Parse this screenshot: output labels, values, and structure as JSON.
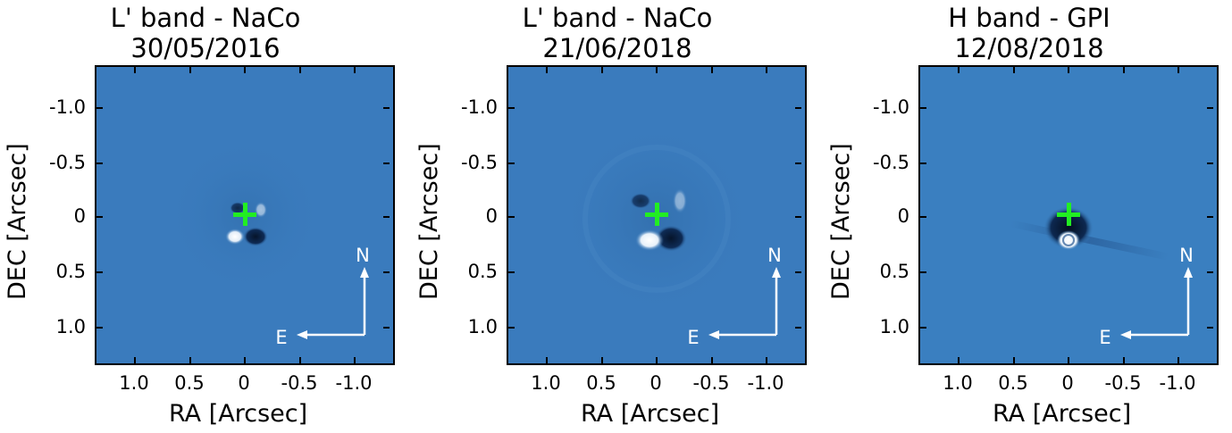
{
  "panels": [
    {
      "title_line1": "L' band - NaCo",
      "title_line2": "30/05/2016",
      "xlabel": "RA [Arcsec]",
      "ylabel": "DEC [Arcsec]",
      "north_label": "N",
      "east_label": "E",
      "background_color": "#3a7bbd",
      "star_marker_color": "#22ee22"
    },
    {
      "title_line1": "L' band - NaCo",
      "title_line2": "21/06/2018",
      "xlabel": "RA [Arcsec]",
      "ylabel": "DEC [Arcsec]",
      "north_label": "N",
      "east_label": "E",
      "background_color": "#3a7bbd",
      "star_marker_color": "#22ee22"
    },
    {
      "title_line1": "H band - GPI",
      "title_line2": "12/08/2018",
      "xlabel": "RA [Arcsec]",
      "ylabel": "DEC [Arcsec]",
      "north_label": "N",
      "east_label": "E",
      "background_color": "#3a7fc0",
      "star_marker_color": "#22ee22"
    }
  ],
  "x_ticks": [
    "1.0",
    "0.5",
    "0",
    "-0.5",
    "-1.0"
  ],
  "y_ticks": [
    "-1.0",
    "-0.5",
    "0",
    "0.5",
    "1.0"
  ]
}
